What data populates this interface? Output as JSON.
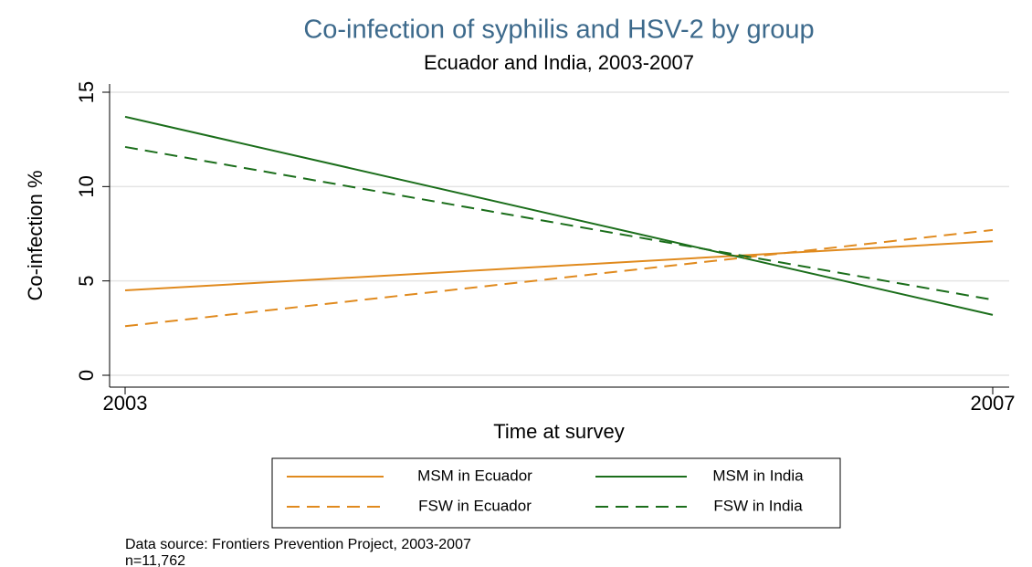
{
  "chart_data": {
    "type": "line",
    "title": "Co-infection of syphilis and HSV-2 by group",
    "subtitle": "Ecuador and India, 2003-2007",
    "x_label": "Time at survey",
    "y_label": "Co-infection %",
    "x": [
      2003,
      2007
    ],
    "xlim": [
      2003,
      2007
    ],
    "xticks": [
      2003,
      2007
    ],
    "ylim": [
      0,
      15
    ],
    "yticks": [
      0,
      5,
      10,
      15
    ],
    "grid": true,
    "series": [
      {
        "name": "MSM in Ecuador",
        "color": "#e08a1e",
        "style": "solid",
        "values": [
          4.5,
          7.1
        ]
      },
      {
        "name": "MSM in India",
        "color": "#1b6e1b",
        "style": "solid",
        "values": [
          13.7,
          3.2
        ]
      },
      {
        "name": "FSW in Ecuador",
        "color": "#e08a1e",
        "style": "dashed",
        "values": [
          2.6,
          7.7
        ]
      },
      {
        "name": "FSW in India",
        "color": "#1b6e1b",
        "style": "dashed",
        "values": [
          12.1,
          4.0
        ]
      }
    ],
    "notes": [
      "Data source:  Frontiers Prevention Project, 2003-2007",
      "n=11,762"
    ]
  }
}
